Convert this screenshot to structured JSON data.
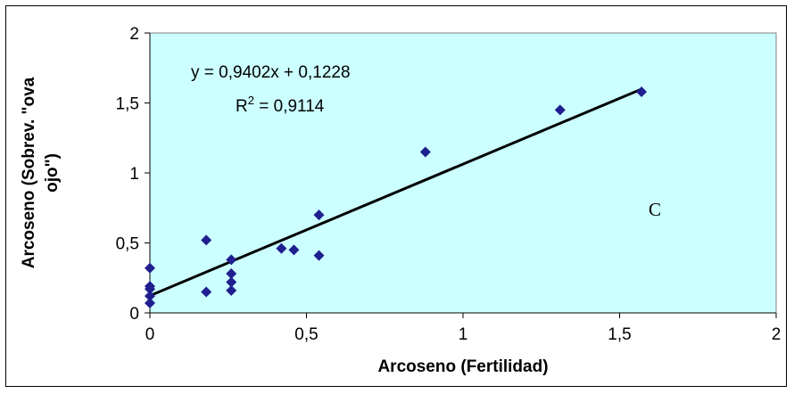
{
  "chart_data": {
    "type": "scatter",
    "xlabel": "Arcoseno (Fertilidad)",
    "ylabel_lines": [
      "Arcoseno (Sobrev. \"ova",
      "ojo\")"
    ],
    "xlim": [
      0,
      2
    ],
    "ylim": [
      0,
      2
    ],
    "x_ticks": [
      "0",
      "0,5",
      "1",
      "1,5",
      "2"
    ],
    "y_ticks": [
      "0",
      "0,5",
      "1",
      "1,5",
      "2"
    ],
    "grid": false,
    "plot_background": "#ccffff",
    "marker_color": "#1f1f8f",
    "trendline": {
      "slope": 0.9402,
      "intercept": 0.1228,
      "x_range": [
        0,
        1.57
      ],
      "equation": "y = 0,9402x + 0,1228",
      "r2_prefix": "R",
      "r2_sup": "2",
      "r2_suffix": " = 0,9114"
    },
    "panel_label": "C",
    "points": [
      {
        "x": 0,
        "y": 0.07
      },
      {
        "x": 0,
        "y": 0.12
      },
      {
        "x": 0,
        "y": 0.17
      },
      {
        "x": 0,
        "y": 0.19
      },
      {
        "x": 0,
        "y": 0.32
      },
      {
        "x": 0.18,
        "y": 0.15
      },
      {
        "x": 0.18,
        "y": 0.52
      },
      {
        "x": 0.26,
        "y": 0.16
      },
      {
        "x": 0.26,
        "y": 0.22
      },
      {
        "x": 0.26,
        "y": 0.28
      },
      {
        "x": 0.26,
        "y": 0.38
      },
      {
        "x": 0.42,
        "y": 0.46
      },
      {
        "x": 0.46,
        "y": 0.45
      },
      {
        "x": 0.54,
        "y": 0.41
      },
      {
        "x": 0.54,
        "y": 0.7
      },
      {
        "x": 0.88,
        "y": 1.15
      },
      {
        "x": 1.31,
        "y": 1.45
      },
      {
        "x": 1.57,
        "y": 1.58
      }
    ]
  }
}
